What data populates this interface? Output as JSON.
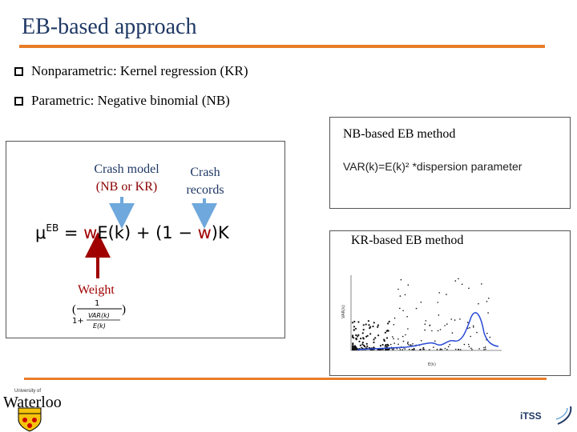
{
  "slide": {
    "title": "EB-based approach",
    "bullets": [
      "Nonparametric: Kernel regression (KR)",
      "Parametric: Negative binomial (NB)"
    ]
  },
  "left_panel": {
    "crash_model_line1": "Crash model",
    "crash_model_line2": "(NB or KR)",
    "crash_records_line1": "Crash",
    "crash_records_line2": "records",
    "formula": {
      "mu": "μ",
      "superscript": "EB",
      "eq": " = ",
      "w1": "w",
      "ek": "E(k) + (1 − ",
      "w2": "w",
      "k": ")K"
    },
    "weight_label": "Weight",
    "weight_numerator": "1",
    "weight_denominator_prefix": "1+",
    "weight_frac_num": "VAR(k)",
    "weight_frac_den": "E(k)"
  },
  "nb_panel": {
    "title": "NB-based EB method",
    "formula": "VAR(k)=E(k)² *dispersion parameter"
  },
  "kr_panel": {
    "title": "KR-based EB method",
    "xlabel": "E(k)",
    "ylabel": "VAR(k)"
  },
  "footer": {
    "logo_small": "University of",
    "logo_text": "Waterloo",
    "itss_logo": "iTSS"
  },
  "colors": {
    "accent_orange": "#e87d2a",
    "title_blue": "#1f3864",
    "arrow_blue": "#6fa8dc",
    "arrow_red": "#a00000",
    "curve_blue": "#2a4bd7"
  }
}
